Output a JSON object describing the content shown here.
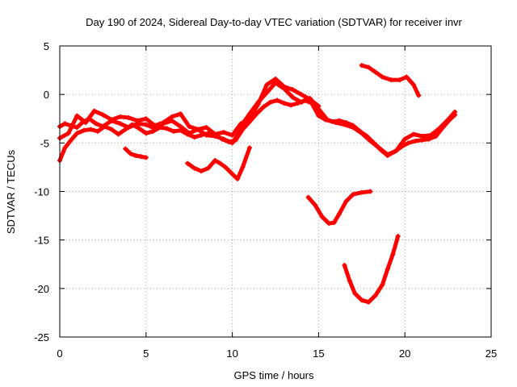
{
  "chart_data": {
    "type": "scatter",
    "title": "Day 190 of 2024, Sidereal Day-to-day VTEC variation (SDTVAR) for receiver invr",
    "xlabel": "GPS time / hours",
    "ylabel": "SDTVAR / TECUs",
    "xlim": [
      0,
      25
    ],
    "ylim": [
      -25,
      5
    ],
    "xticks": [
      0,
      5,
      10,
      15,
      20,
      25
    ],
    "yticks": [
      5,
      0,
      -5,
      -10,
      -15,
      -20,
      -25
    ],
    "grid": true,
    "marker_color": "#ff0000",
    "series": [
      {
        "name": "arc1",
        "x": [
          0.0,
          0.3,
          0.6,
          1.0,
          1.3,
          1.7,
          2.1,
          2.5,
          3.0,
          3.5,
          4.0,
          4.5,
          5.0,
          5.5,
          6.0,
          6.5,
          7.0,
          7.5,
          8.0,
          8.5,
          9.0,
          9.5,
          10.0,
          10.3,
          10.6,
          11.0,
          11.5,
          12.0,
          12.5,
          13.0,
          13.5,
          14.0,
          14.5,
          15.0,
          15.5,
          16.0,
          16.5,
          17.0,
          17.5,
          18.0,
          18.5,
          19.0,
          19.5,
          20.0,
          20.5,
          21.0,
          21.5,
          22.0,
          22.5,
          22.9
        ],
        "y": [
          -3.3,
          -3.0,
          -3.2,
          -3.4,
          -2.9,
          -2.5,
          -3.0,
          -3.3,
          -2.7,
          -3.0,
          -3.4,
          -3.0,
          -3.1,
          -3.5,
          -3.0,
          -2.7,
          -3.3,
          -4.0,
          -3.6,
          -4.2,
          -4.3,
          -4.6,
          -5.0,
          -4.2,
          -3.0,
          -2.0,
          -0.8,
          0.2,
          1.2,
          0.6,
          -0.3,
          -0.8,
          -0.4,
          -1.5,
          -2.6,
          -2.9,
          -3.1,
          -3.4,
          -4.0,
          -4.8,
          -5.5,
          -6.2,
          -5.8,
          -4.6,
          -4.1,
          -4.3,
          -4.2,
          -3.5,
          -2.6,
          -1.8
        ]
      },
      {
        "name": "arc2",
        "x": [
          0.0,
          0.3,
          0.7,
          1.0,
          1.4,
          1.8,
          2.2,
          2.6,
          3.0,
          3.4,
          3.8,
          4.2,
          4.6,
          5.0,
          5.4,
          5.8,
          6.2,
          6.6,
          7.0,
          7.4,
          7.8,
          8.2,
          8.6,
          9.0,
          9.4,
          9.8,
          10.2,
          10.6,
          11.0,
          11.4,
          11.8,
          12.2,
          12.6,
          13.0,
          13.4,
          13.8,
          14.2,
          14.6,
          15.0,
          15.4,
          15.8,
          16.2,
          16.6,
          17.0,
          17.4,
          17.8,
          18.2,
          18.6,
          19.0,
          19.4,
          19.8,
          20.2,
          20.6,
          21.0,
          21.4,
          21.8,
          22.2,
          22.6,
          22.9
        ],
        "y": [
          -6.8,
          -5.5,
          -4.6,
          -4.0,
          -3.7,
          -3.6,
          -3.8,
          -3.3,
          -3.6,
          -4.1,
          -3.6,
          -3.1,
          -3.5,
          -4.0,
          -3.8,
          -3.4,
          -3.5,
          -3.8,
          -3.7,
          -4.1,
          -4.4,
          -4.2,
          -4.0,
          -4.1,
          -4.6,
          -4.9,
          -4.7,
          -3.6,
          -2.8,
          -2.0,
          -1.3,
          -0.8,
          -0.6,
          -0.9,
          -1.1,
          -0.9,
          -0.6,
          -0.9,
          -2.2,
          -2.6,
          -2.8,
          -2.7,
          -2.9,
          -3.2,
          -3.8,
          -4.3,
          -5.0,
          -5.7,
          -6.3,
          -5.9,
          -5.4,
          -5.0,
          -4.8,
          -4.7,
          -4.6,
          -4.3,
          -3.4,
          -2.6,
          -2.1
        ]
      },
      {
        "name": "arc3",
        "x": [
          0.0,
          0.5,
          1.0,
          1.5,
          2.0,
          2.5,
          3.0,
          3.5,
          4.0,
          4.5,
          5.0,
          5.5,
          6.0,
          6.5,
          7.0,
          7.5,
          8.0,
          8.5,
          9.0,
          9.5,
          10.0,
          10.5,
          11.0,
          11.5,
          12.0,
          12.5,
          13.0,
          13.5,
          14.0,
          14.5,
          15.0
        ],
        "y": [
          -4.5,
          -4.0,
          -2.2,
          -2.9,
          -1.7,
          -2.1,
          -2.6,
          -2.3,
          -2.4,
          -2.7,
          -2.5,
          -3.2,
          -2.9,
          -2.3,
          -2.0,
          -3.3,
          -3.6,
          -3.4,
          -4.1,
          -3.9,
          -4.2,
          -3.0,
          -2.5,
          -1.0,
          1.0,
          1.6,
          0.8,
          0.5,
          0.0,
          -0.5,
          -1.2
        ]
      },
      {
        "name": "arc4",
        "x": [
          3.8,
          4.1,
          4.4,
          4.7,
          5.0
        ],
        "y": [
          -5.6,
          -6.1,
          -6.3,
          -6.4,
          -6.5
        ]
      },
      {
        "name": "arc5",
        "x": [
          7.4,
          7.8,
          8.2,
          8.6,
          9.0,
          9.3,
          9.6,
          10.0,
          10.3,
          10.6,
          11.0
        ],
        "y": [
          -7.1,
          -7.6,
          -7.9,
          -7.6,
          -6.8,
          -7.1,
          -7.5,
          -8.2,
          -8.7,
          -7.5,
          -5.5
        ]
      },
      {
        "name": "arc6",
        "x": [
          14.4,
          14.8,
          15.2,
          15.6,
          15.9,
          16.2,
          16.6,
          17.0,
          17.5,
          18.0
        ],
        "y": [
          -10.6,
          -11.4,
          -12.6,
          -13.3,
          -13.2,
          -12.3,
          -11.0,
          -10.3,
          -10.1,
          -10.0
        ]
      },
      {
        "name": "arc7",
        "x": [
          16.5,
          16.8,
          17.1,
          17.5,
          17.9,
          18.3,
          18.7,
          19.0,
          19.3,
          19.6
        ],
        "y": [
          -17.6,
          -19.2,
          -20.5,
          -21.2,
          -21.4,
          -20.7,
          -19.6,
          -18.0,
          -16.5,
          -14.6
        ]
      },
      {
        "name": "arc8",
        "x": [
          17.5,
          17.9,
          18.3,
          18.7,
          19.2,
          19.7,
          20.1,
          20.5,
          20.8
        ],
        "y": [
          3.0,
          2.8,
          2.3,
          1.8,
          1.5,
          1.5,
          1.8,
          1.0,
          -0.1
        ]
      }
    ]
  }
}
